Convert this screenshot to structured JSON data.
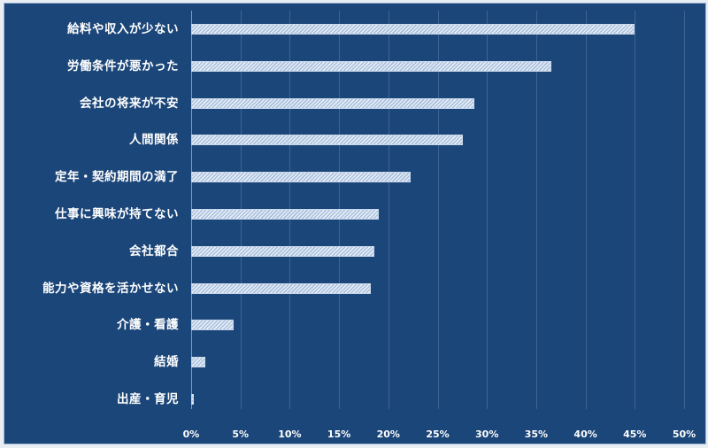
{
  "chart_data": {
    "type": "bar",
    "orientation": "horizontal",
    "title": "",
    "xlabel": "",
    "ylabel": "",
    "categories": [
      "給料や収入が少ない",
      "労働条件が悪かった",
      "会社の将来が不安",
      "人間関係",
      "定年・契約期間の満了",
      "仕事に興味が持てない",
      "会社都合",
      "能力や資格を活かせない",
      "介護・看護",
      "結婚",
      "出産・育児"
    ],
    "values": [
      45.0,
      36.5,
      28.7,
      27.6,
      22.3,
      19.0,
      18.6,
      18.2,
      4.3,
      1.4,
      0.3
    ],
    "xlim": [
      0,
      50
    ],
    "x_ticks": [
      "0%",
      "5%",
      "10%",
      "15%",
      "20%",
      "25%",
      "30%",
      "35%",
      "40%",
      "45%",
      "50%"
    ],
    "grid": "vertical",
    "legend": "none",
    "colors": {
      "background": "#1b4679",
      "bar_fill": "#e6eef8",
      "bar_hatch": "#a9bfdc",
      "gridline": "#3e6394",
      "text": "#ffffff"
    }
  }
}
